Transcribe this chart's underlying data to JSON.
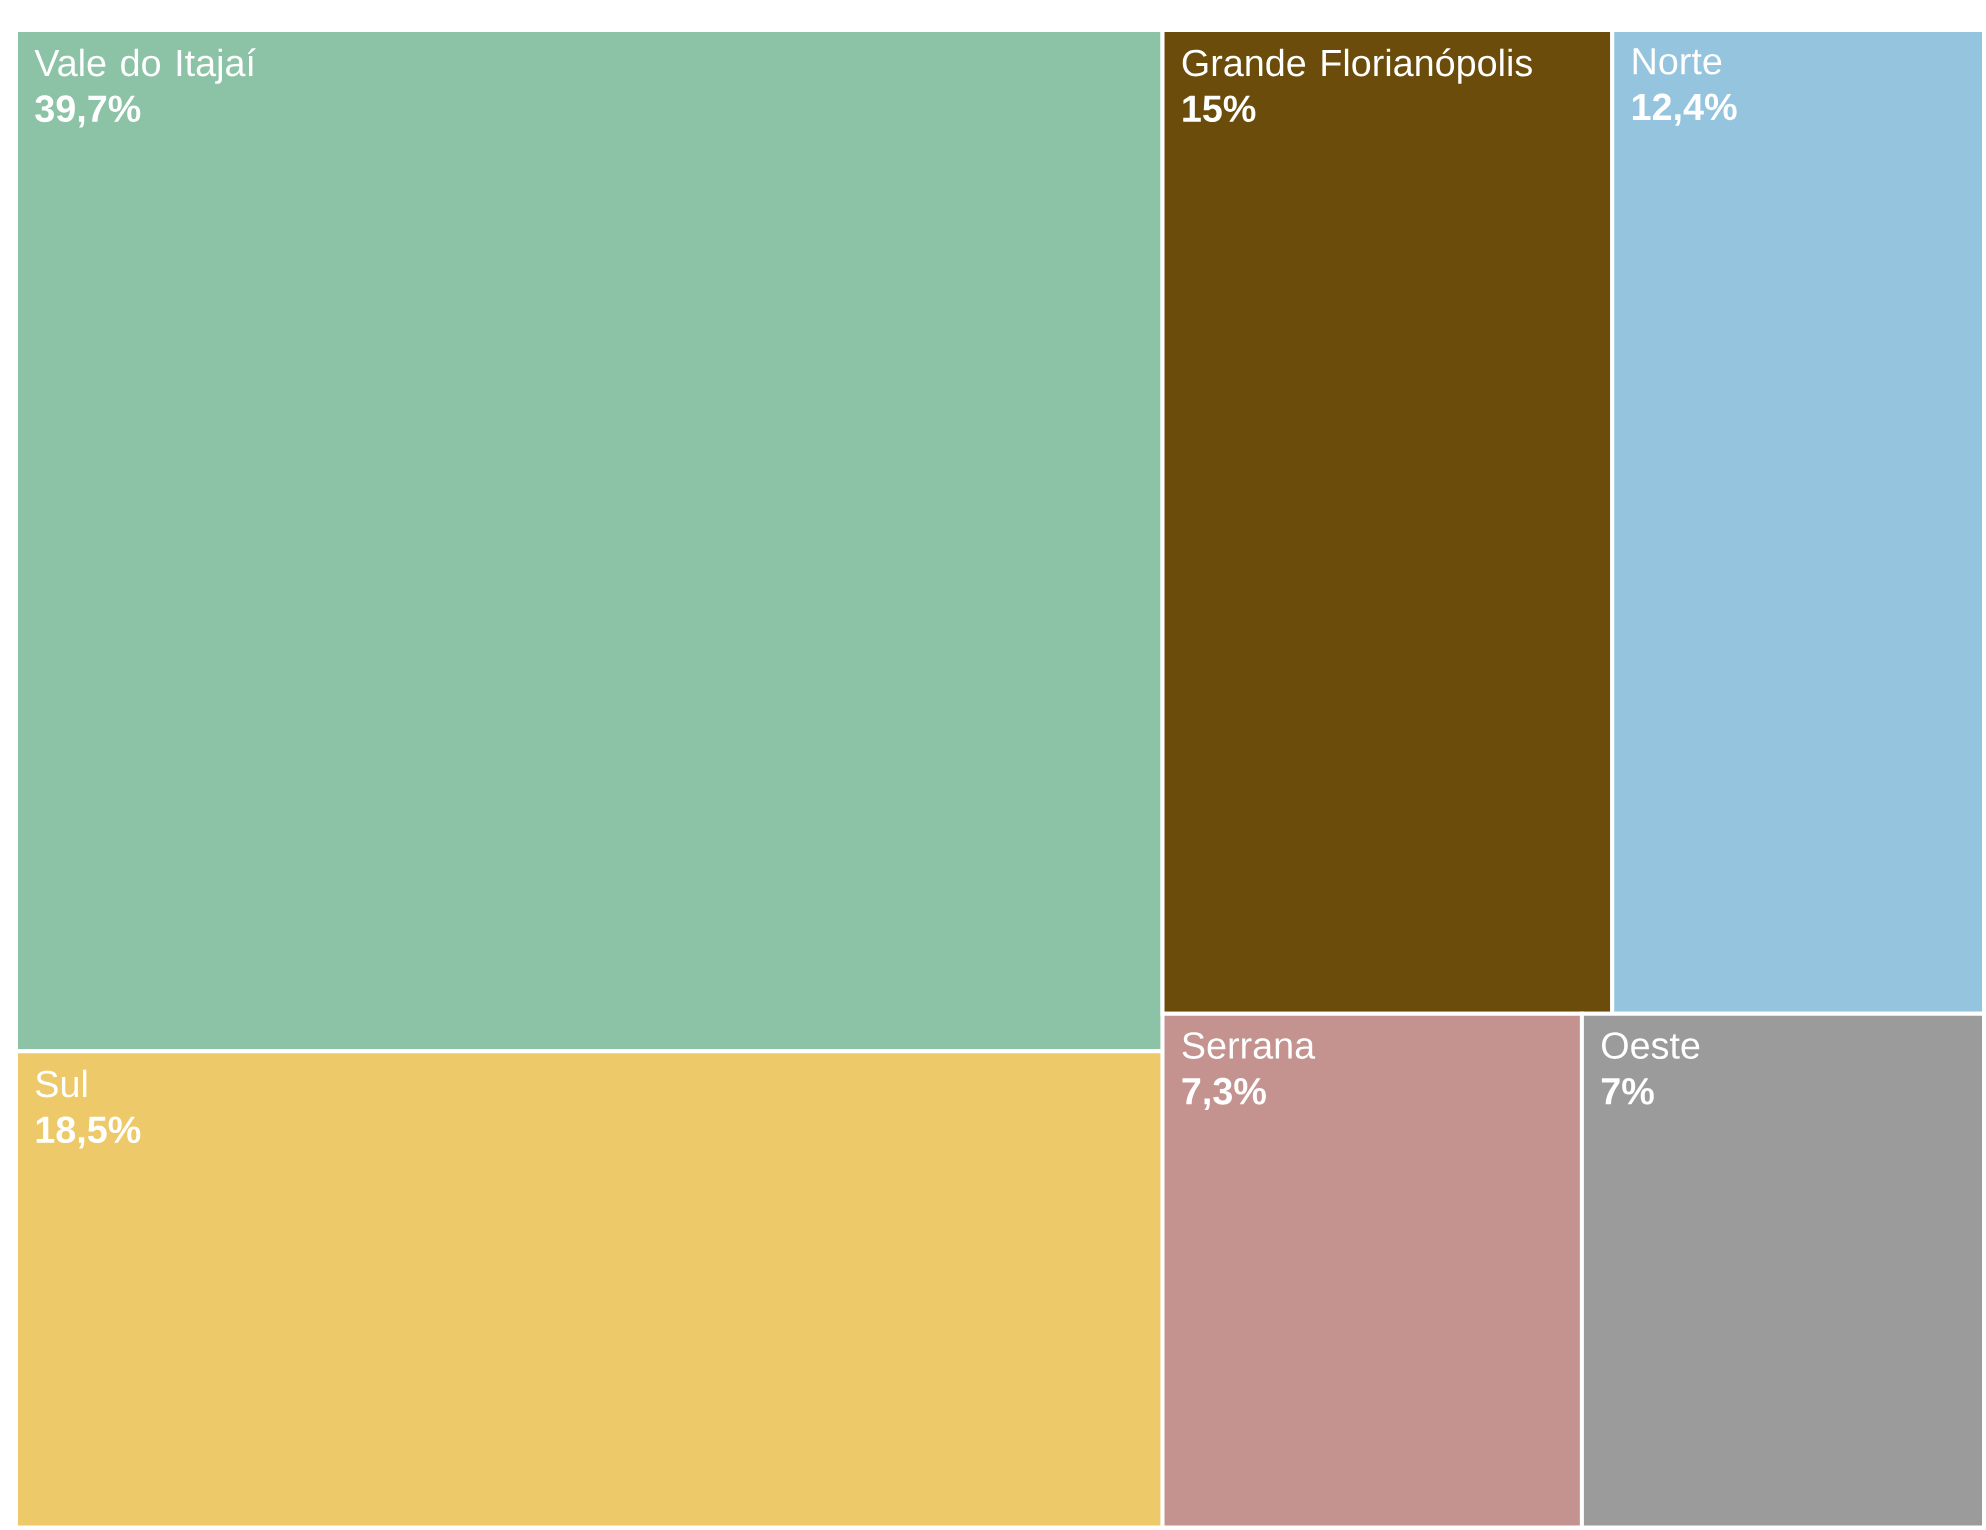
{
  "chart_data": {
    "type": "other",
    "categories": [
      "Vale do Itajaí",
      "Sul",
      "Grande Florianópolis",
      "Norte",
      "Serrana",
      "Oeste"
    ],
    "values": [
      39.7,
      18.5,
      15,
      12.4,
      7.3,
      7
    ],
    "value_labels": [
      "39,7%",
      "18,5%",
      "15%",
      "12,4%",
      "7,3%",
      "7%"
    ],
    "colors": [
      "#8cc2a6",
      "#edc96a",
      "#6b4c0a",
      "#94c4de",
      "#c4938f",
      "#9b9b9b"
    ]
  }
}
